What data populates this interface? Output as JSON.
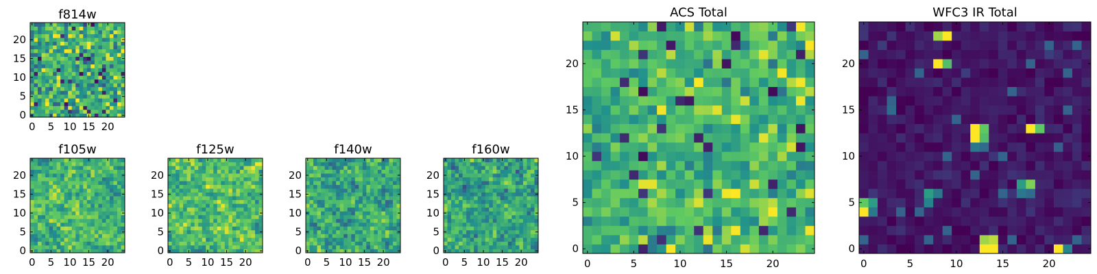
{
  "colormap": [
    "#440154",
    "#3b528b",
    "#21918c",
    "#5ec962",
    "#fde725"
  ],
  "chart_data": [
    {
      "id": "f814w",
      "type": "heatmap",
      "title": "f814w",
      "grid_size": 25,
      "x_range": [
        0,
        24
      ],
      "y_range": [
        0,
        24
      ],
      "x_ticks": [
        0,
        5,
        10,
        15,
        20
      ],
      "y_ticks": [
        0,
        5,
        10,
        15,
        20
      ],
      "tick_labels_x": [
        "0",
        "5",
        "10",
        "15",
        "20"
      ],
      "tick_labels_y": [
        "0",
        "5",
        "10",
        "15",
        "20"
      ],
      "value_model": {
        "mean": 0.62,
        "spread": 0.3,
        "smooth": 0,
        "seed": 11,
        "hot": []
      }
    },
    {
      "id": "f105w",
      "type": "heatmap",
      "title": "f105w",
      "grid_size": 25,
      "x_range": [
        0,
        24
      ],
      "y_range": [
        0,
        24
      ],
      "x_ticks": [
        0,
        5,
        10,
        15,
        20
      ],
      "y_ticks": [
        0,
        5,
        10,
        15,
        20
      ],
      "tick_labels_x": [
        "0",
        "5",
        "10",
        "15",
        "20"
      ],
      "tick_labels_y": [
        "0",
        "5",
        "10",
        "15",
        "20"
      ],
      "value_model": {
        "mean": 0.66,
        "spread": 0.3,
        "smooth": 1,
        "seed": 23,
        "hot": []
      }
    },
    {
      "id": "f125w",
      "type": "heatmap",
      "title": "f125w",
      "grid_size": 25,
      "x_range": [
        0,
        24
      ],
      "y_range": [
        0,
        24
      ],
      "x_ticks": [
        0,
        5,
        10,
        15,
        20
      ],
      "y_ticks": [
        0,
        5,
        10,
        15,
        20
      ],
      "tick_labels_x": [
        "0",
        "5",
        "10",
        "15",
        "20"
      ],
      "tick_labels_y": [
        "0",
        "5",
        "10",
        "15",
        "20"
      ],
      "value_model": {
        "mean": 0.7,
        "spread": 0.3,
        "smooth": 1,
        "seed": 37,
        "hot": []
      }
    },
    {
      "id": "f140w",
      "type": "heatmap",
      "title": "f140w",
      "grid_size": 25,
      "x_range": [
        0,
        24
      ],
      "y_range": [
        0,
        24
      ],
      "x_ticks": [
        0,
        5,
        10,
        15,
        20
      ],
      "y_ticks": [
        0,
        5,
        10,
        15,
        20
      ],
      "tick_labels_x": [
        "0",
        "5",
        "10",
        "15",
        "20"
      ],
      "tick_labels_y": [
        "0",
        "5",
        "10",
        "15",
        "20"
      ],
      "value_model": {
        "mean": 0.6,
        "spread": 0.32,
        "smooth": 1,
        "seed": 41,
        "hot": []
      }
    },
    {
      "id": "f160w",
      "type": "heatmap",
      "title": "f160w",
      "grid_size": 25,
      "x_range": [
        0,
        24
      ],
      "y_range": [
        0,
        24
      ],
      "x_ticks": [
        0,
        5,
        10,
        15,
        20
      ],
      "y_ticks": [
        0,
        5,
        10,
        15,
        20
      ],
      "tick_labels_x": [
        "0",
        "5",
        "10",
        "15",
        "20"
      ],
      "tick_labels_y": [
        "0",
        "5",
        "10",
        "15",
        "20"
      ],
      "value_model": {
        "mean": 0.62,
        "spread": 0.32,
        "smooth": 1,
        "seed": 53,
        "hot": []
      }
    },
    {
      "id": "acs-total",
      "type": "heatmap",
      "title": "ACS Total",
      "grid_size": 25,
      "x_range": [
        0,
        24
      ],
      "y_range": [
        0,
        24
      ],
      "x_ticks": [
        0,
        5,
        10,
        15,
        20
      ],
      "y_ticks": [
        0,
        5,
        10,
        15,
        20
      ],
      "tick_labels_x": [
        "0",
        "5",
        "10",
        "15",
        "20"
      ],
      "tick_labels_y": [
        "0",
        "5",
        "10",
        "15",
        "20"
      ],
      "value_model": {
        "mean": 0.66,
        "spread": 0.22,
        "smooth": 0,
        "seed": 67,
        "hot": []
      }
    },
    {
      "id": "wfc3-ir-total",
      "type": "heatmap",
      "title": "WFC3 IR Total",
      "grid_size": 25,
      "x_range": [
        0,
        24
      ],
      "y_range": [
        0,
        24
      ],
      "x_ticks": [
        0,
        5,
        10,
        15,
        20
      ],
      "y_ticks": [
        0,
        5,
        10,
        15,
        20
      ],
      "tick_labels_x": [
        "0",
        "5",
        "10",
        "15",
        "20"
      ],
      "tick_labels_y": [
        "0",
        "5",
        "10",
        "15",
        "20"
      ],
      "value_model": {
        "mean": 0.07,
        "spread": 0.08,
        "smooth": 0,
        "seed": 79,
        "hot": [
          {
            "x": 8,
            "y": 23,
            "v": 0.85
          },
          {
            "x": 9,
            "y": 23,
            "v": 1.0
          },
          {
            "x": 8,
            "y": 20,
            "v": 1.0
          },
          {
            "x": 9,
            "y": 20,
            "v": 0.7
          },
          {
            "x": 12,
            "y": 13,
            "v": 1.0
          },
          {
            "x": 13,
            "y": 13,
            "v": 0.75
          },
          {
            "x": 12,
            "y": 12,
            "v": 1.0
          },
          {
            "x": 13,
            "y": 12,
            "v": 0.7
          },
          {
            "x": 12,
            "y": 11,
            "v": 0.4
          },
          {
            "x": 13,
            "y": 11,
            "v": 0.35
          },
          {
            "x": 18,
            "y": 13,
            "v": 1.0
          },
          {
            "x": 19,
            "y": 13,
            "v": 0.75
          },
          {
            "x": 17,
            "y": 7,
            "v": 0.55
          },
          {
            "x": 18,
            "y": 7,
            "v": 0.8
          },
          {
            "x": 17,
            "y": 6,
            "v": 0.4
          },
          {
            "x": 18,
            "y": 6,
            "v": 0.35
          },
          {
            "x": 7,
            "y": 6,
            "v": 0.55
          },
          {
            "x": 8,
            "y": 6,
            "v": 0.4
          },
          {
            "x": 7,
            "y": 5,
            "v": 0.45
          },
          {
            "x": 0,
            "y": 5,
            "v": 0.75
          },
          {
            "x": 0,
            "y": 4,
            "v": 1.0
          },
          {
            "x": 1,
            "y": 5,
            "v": 0.55
          },
          {
            "x": 1,
            "y": 4,
            "v": 0.4
          },
          {
            "x": 13,
            "y": 1,
            "v": 0.85
          },
          {
            "x": 14,
            "y": 1,
            "v": 0.9
          },
          {
            "x": 13,
            "y": 0,
            "v": 1.0
          },
          {
            "x": 14,
            "y": 0,
            "v": 1.0
          },
          {
            "x": 21,
            "y": 0,
            "v": 1.0
          },
          {
            "x": 22,
            "y": 0,
            "v": 0.45
          },
          {
            "x": 3,
            "y": 15,
            "v": 0.35
          },
          {
            "x": 21,
            "y": 11,
            "v": 0.3
          }
        ]
      }
    }
  ]
}
